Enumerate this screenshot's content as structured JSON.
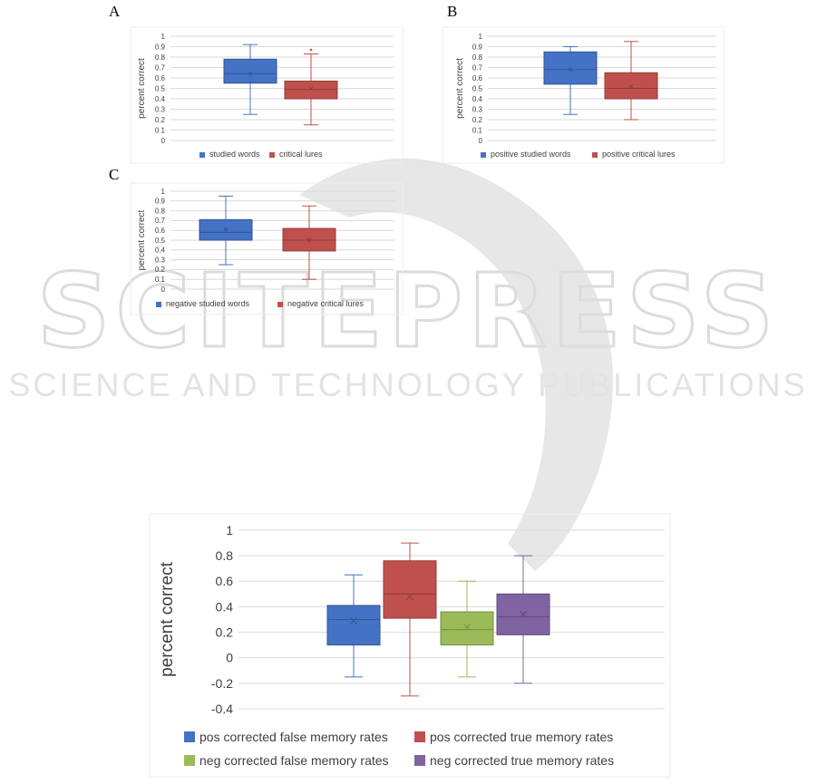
{
  "watermark": {
    "title": "SCITEPRESS",
    "subtitle": "SCIENCE AND TECHNOLOGY PUBLICATIONS"
  },
  "chart_data": [
    {
      "id": "A",
      "type": "box",
      "panel_label": "A",
      "ylabel": "percent correct",
      "ylim": [
        0,
        1
      ],
      "yticks": [
        0,
        0.1,
        0.2,
        0.3,
        0.4,
        0.5,
        0.6,
        0.7,
        0.8,
        0.9,
        1
      ],
      "grid": true,
      "legend_position": "bottom",
      "series": [
        {
          "name": "studied words",
          "color": "#4472C4",
          "min": 0.25,
          "q1": 0.55,
          "median": 0.64,
          "q3": 0.78,
          "max": 0.92,
          "mean": 0.64,
          "outliers": []
        },
        {
          "name": "critical lures",
          "color": "#C0504D",
          "min": 0.15,
          "q1": 0.4,
          "median": 0.49,
          "q3": 0.57,
          "max": 0.83,
          "mean": 0.5,
          "outliers": [
            0.87
          ]
        }
      ]
    },
    {
      "id": "B",
      "type": "box",
      "panel_label": "B",
      "ylabel": "percent correct",
      "ylim": [
        0,
        1
      ],
      "yticks": [
        0,
        0.1,
        0.2,
        0.3,
        0.4,
        0.5,
        0.6,
        0.7,
        0.8,
        0.9,
        1
      ],
      "grid": true,
      "legend_position": "bottom",
      "series": [
        {
          "name": "positive studied words",
          "color": "#4472C4",
          "min": 0.25,
          "q1": 0.54,
          "median": 0.68,
          "q3": 0.85,
          "max": 0.9,
          "mean": 0.68,
          "outliers": []
        },
        {
          "name": "positive critical lures",
          "color": "#C0504D",
          "min": 0.2,
          "q1": 0.4,
          "median": 0.5,
          "q3": 0.65,
          "max": 0.95,
          "mean": 0.52,
          "outliers": []
        }
      ]
    },
    {
      "id": "C",
      "type": "box",
      "panel_label": "C",
      "ylabel": "percent correct",
      "ylim": [
        0,
        1
      ],
      "yticks": [
        0,
        0.1,
        0.2,
        0.3,
        0.4,
        0.5,
        0.6,
        0.7,
        0.8,
        0.9,
        1
      ],
      "grid": true,
      "legend_position": "bottom",
      "series": [
        {
          "name": "negative studied words",
          "color": "#4472C4",
          "min": 0.25,
          "q1": 0.5,
          "median": 0.58,
          "q3": 0.71,
          "max": 0.95,
          "mean": 0.61,
          "outliers": []
        },
        {
          "name": "negative critical lures",
          "color": "#C0504D",
          "min": 0.1,
          "q1": 0.39,
          "median": 0.5,
          "q3": 0.62,
          "max": 0.85,
          "mean": 0.5,
          "outliers": []
        }
      ]
    },
    {
      "id": "D",
      "type": "box",
      "panel_label": "",
      "ylabel": "percent correct",
      "ylim": [
        -0.4,
        1
      ],
      "yticks": [
        -0.4,
        -0.2,
        0,
        0.2,
        0.4,
        0.6,
        0.8,
        1
      ],
      "grid": true,
      "legend_position": "bottom",
      "series": [
        {
          "name": "pos corrected false memory rates",
          "color": "#4472C4",
          "min": -0.15,
          "q1": 0.1,
          "median": 0.3,
          "q3": 0.41,
          "max": 0.65,
          "mean": 0.29,
          "outliers": []
        },
        {
          "name": "pos corrected true memory rates",
          "color": "#C0504D",
          "min": -0.3,
          "q1": 0.31,
          "median": 0.5,
          "q3": 0.76,
          "max": 0.9,
          "mean": 0.48,
          "outliers": []
        },
        {
          "name": "neg corrected false memory rates",
          "color": "#9BBB59",
          "min": -0.15,
          "q1": 0.1,
          "median": 0.22,
          "q3": 0.36,
          "max": 0.6,
          "mean": 0.24,
          "outliers": []
        },
        {
          "name": "neg corrected true memory rates",
          "color": "#8064A2",
          "min": -0.2,
          "q1": 0.18,
          "median": 0.32,
          "q3": 0.5,
          "max": 0.8,
          "mean": 0.34,
          "outliers": []
        }
      ]
    }
  ]
}
